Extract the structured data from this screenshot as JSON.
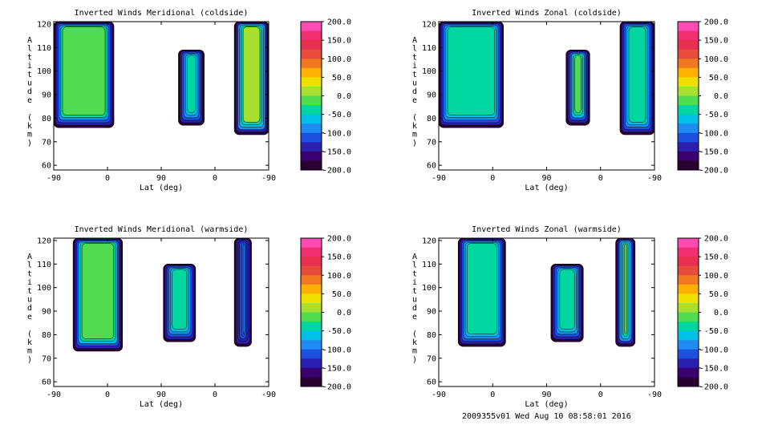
{
  "chart_data": [
    {
      "type": "heatmap",
      "title": "Inverted Winds Meridional (coldside)",
      "xlabel": "Lat (deg)",
      "ylabel": "Altitude (km)",
      "x_ticks": [
        "-90",
        "0",
        "90",
        "0",
        "-90"
      ],
      "y_ticks": [
        "60",
        "70",
        "80",
        "90",
        "100",
        "110",
        "120"
      ],
      "ylim": [
        58,
        121
      ],
      "colorbar_ticks": [
        "200.0",
        "150.0",
        "100.0",
        "50.0",
        "0.0",
        "-50.0",
        "-100.0",
        "-150.0",
        "-200.0"
      ],
      "clim": [
        -200,
        200
      ],
      "regions": [
        {
          "x0": 0.0,
          "x1": 0.28,
          "y0": 76,
          "y1": 121,
          "value": -30
        },
        {
          "x0": 0.58,
          "x1": 0.7,
          "y0": 77,
          "y1": 109,
          "value": -60
        },
        {
          "x0": 0.84,
          "x1": 1.0,
          "y0": 73,
          "y1": 121,
          "value": -10
        }
      ]
    },
    {
      "type": "heatmap",
      "title": "Inverted Winds Zonal (coldside)",
      "xlabel": "Lat (deg)",
      "ylabel": "Altitude (km)",
      "x_ticks": [
        "-90",
        "0",
        "90",
        "0",
        "-90"
      ],
      "y_ticks": [
        "60",
        "70",
        "80",
        "90",
        "100",
        "110",
        "120"
      ],
      "ylim": [
        58,
        121
      ],
      "colorbar_ticks": [
        "200.0",
        "150.0",
        "100.0",
        "50.0",
        "0.0",
        "-50.0",
        "-100.0",
        "-150.0",
        "-200.0"
      ],
      "clim": [
        -200,
        200
      ],
      "regions": [
        {
          "x0": 0.0,
          "x1": 0.3,
          "y0": 76,
          "y1": 121,
          "value": -60
        },
        {
          "x0": 0.59,
          "x1": 0.7,
          "y0": 77,
          "y1": 109,
          "value": -20
        },
        {
          "x0": 0.84,
          "x1": 1.0,
          "y0": 73,
          "y1": 121,
          "value": -50
        }
      ]
    },
    {
      "type": "heatmap",
      "title": "Inverted Winds Meridional (warmside)",
      "xlabel": "Lat (deg)",
      "ylabel": "Altitude (km)",
      "x_ticks": [
        "-90",
        "0",
        "90",
        "0",
        "-90"
      ],
      "y_ticks": [
        "60",
        "70",
        "80",
        "90",
        "100",
        "110",
        "120"
      ],
      "ylim": [
        58,
        121
      ],
      "colorbar_ticks": [
        "200.0",
        "150.0",
        "100.0",
        "50.0",
        "0.0",
        "-50.0",
        "-100.0",
        "-150.0",
        "-200.0"
      ],
      "clim": [
        -200,
        200
      ],
      "regions": [
        {
          "x0": 0.09,
          "x1": 0.32,
          "y0": 73,
          "y1": 121,
          "value": -20
        },
        {
          "x0": 0.51,
          "x1": 0.66,
          "y0": 77,
          "y1": 110,
          "value": -40
        },
        {
          "x0": 0.84,
          "x1": 0.92,
          "y0": 75,
          "y1": 121,
          "value": -100
        }
      ]
    },
    {
      "type": "heatmap",
      "title": "Inverted Winds Zonal (warmside)",
      "xlabel": "Lat (deg)",
      "ylabel": "Altitude (km)",
      "x_ticks": [
        "-90",
        "0",
        "90",
        "0",
        "-90"
      ],
      "y_ticks": [
        "60",
        "70",
        "80",
        "90",
        "100",
        "110",
        "120"
      ],
      "ylim": [
        58,
        121
      ],
      "colorbar_ticks": [
        "200.0",
        "150.0",
        "100.0",
        "50.0",
        "0.0",
        "-50.0",
        "-100.0",
        "-150.0",
        "-200.0"
      ],
      "clim": [
        -200,
        200
      ],
      "regions": [
        {
          "x0": 0.09,
          "x1": 0.31,
          "y0": 75,
          "y1": 121,
          "value": -40
        },
        {
          "x0": 0.52,
          "x1": 0.67,
          "y0": 77,
          "y1": 110,
          "value": -40
        },
        {
          "x0": 0.82,
          "x1": 0.91,
          "y0": 75,
          "y1": 121,
          "value": -10
        }
      ]
    }
  ],
  "footer": "2009355v01 Wed Aug 10 08:58:01 2016"
}
